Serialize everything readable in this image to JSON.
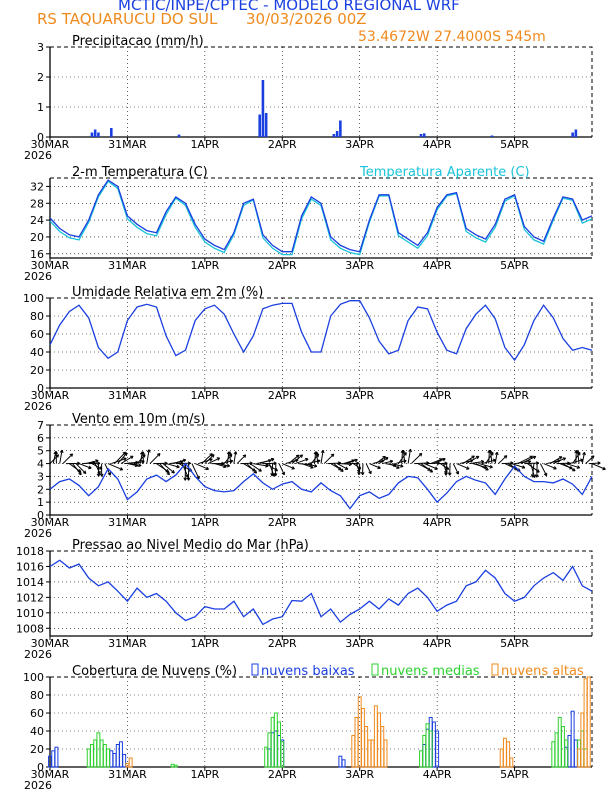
{
  "header": {
    "title": "MCTIC/INPE/CPTEC - MODELO REGIONAL WRF",
    "location": "RS TAQUARUCU DO SUL",
    "run": "30/03/2026 00Z",
    "coords": "53.4672W 27.4000S 545m"
  },
  "colors": {
    "series_blue": "#1a3fe0",
    "series_cyan": "#19c3d8",
    "orange": "#f08a1c",
    "green": "#2ed12e",
    "vector": "#000000"
  },
  "time_axis": {
    "hours": 144,
    "ticks": [
      {
        "hour": 0,
        "label": "30MAR",
        "year": "2026"
      },
      {
        "hour": 24,
        "label": "31MAR"
      },
      {
        "hour": 48,
        "label": "1APR"
      },
      {
        "hour": 72,
        "label": "2APR"
      },
      {
        "hour": 96,
        "label": "3APR"
      },
      {
        "hour": 120,
        "label": "4APR"
      },
      {
        "hour": 144,
        "label": "5APR"
      }
    ]
  },
  "chart_data": [
    {
      "type": "bar",
      "id": "precip",
      "title": "Precipitacao (mm/h)",
      "ylim": [
        0,
        3
      ],
      "yticks": [
        0,
        1,
        2,
        3
      ],
      "x_unit": "hours since 30MAR 00Z",
      "x": [
        13,
        14,
        15,
        19,
        40,
        65,
        66,
        67,
        88,
        89,
        90,
        115,
        116,
        137,
        162,
        163
      ],
      "values": [
        0.15,
        0.25,
        0.15,
        0.3,
        0.08,
        0.75,
        1.9,
        0.8,
        0.1,
        0.2,
        0.55,
        0.1,
        0.12,
        0.05,
        0.15,
        0.25
      ]
    },
    {
      "type": "line",
      "id": "temperature",
      "title": "2-m Temperatura (C)",
      "legend": "Temperatura Aparente (C)",
      "ylim": [
        15,
        34
      ],
      "yticks": [
        16,
        20,
        24,
        28,
        32
      ],
      "series": [
        {
          "name": "2-m Temperatura (C)",
          "color": "blue",
          "t": [
            0,
            3,
            6,
            9,
            12,
            15,
            18,
            21,
            24,
            27,
            30,
            33,
            36,
            39,
            42,
            45,
            48,
            51,
            54,
            57,
            60,
            63,
            66,
            69,
            72,
            75,
            78,
            81,
            84,
            87,
            90,
            93,
            96,
            99,
            102,
            105,
            108,
            111,
            114,
            117,
            120,
            123,
            126,
            129,
            132,
            135,
            138,
            141,
            144,
            147,
            150,
            153,
            156,
            159,
            162,
            165,
            168
          ],
          "values": [
            24.5,
            22,
            20.5,
            20,
            24,
            30,
            33.5,
            32,
            25,
            23,
            21.5,
            21,
            26,
            29.5,
            28,
            23,
            19.5,
            18,
            17,
            21,
            28,
            29,
            20.5,
            18,
            16.5,
            16.5,
            25,
            29.5,
            28,
            20,
            18,
            17,
            16.5,
            24,
            30,
            30,
            21,
            19.5,
            18,
            21,
            27,
            30,
            30.5,
            22,
            20.5,
            19.5,
            23,
            29,
            30,
            22.5,
            20,
            19,
            24.5,
            29.5,
            29,
            24,
            25
          ]
        },
        {
          "name": "Temperatura Aparente (C)",
          "color": "cyan",
          "t": [
            0,
            3,
            6,
            9,
            12,
            15,
            18,
            21,
            24,
            27,
            30,
            33,
            36,
            39,
            42,
            45,
            48,
            51,
            54,
            57,
            60,
            63,
            66,
            69,
            72,
            75,
            78,
            81,
            84,
            87,
            90,
            93,
            96,
            99,
            102,
            105,
            108,
            111,
            114,
            117,
            120,
            123,
            126,
            129,
            132,
            135,
            138,
            141,
            144,
            147,
            150,
            153,
            156,
            159,
            162,
            165,
            168
          ],
          "values": [
            23.8,
            21.3,
            19.8,
            19.3,
            23.5,
            29.5,
            33.2,
            31.5,
            24.3,
            22.3,
            20.8,
            20.3,
            25.3,
            29.2,
            27.5,
            22.3,
            18.8,
            17.3,
            16.3,
            20.5,
            27.5,
            28.8,
            19.8,
            17.3,
            15.8,
            15.8,
            24.3,
            29,
            27.5,
            19.3,
            17.3,
            16.3,
            15.8,
            23.5,
            29.7,
            29.8,
            20.3,
            18.8,
            17.3,
            20.3,
            26.5,
            29.7,
            30.3,
            21.3,
            19.8,
            18.8,
            22.3,
            28.5,
            29.8,
            21.8,
            19.3,
            18.3,
            24,
            29.2,
            28.7,
            23.3,
            24.3
          ]
        }
      ]
    },
    {
      "type": "line",
      "id": "humidity",
      "title": "Umidade Relativa em 2m (%)",
      "ylim": [
        0,
        100
      ],
      "yticks": [
        0,
        20,
        40,
        60,
        80,
        100
      ],
      "series": [
        {
          "name": "Umidade Relativa",
          "color": "blue",
          "t": [
            0,
            3,
            6,
            9,
            12,
            15,
            18,
            21,
            24,
            27,
            30,
            33,
            36,
            39,
            42,
            45,
            48,
            51,
            54,
            57,
            60,
            63,
            66,
            69,
            72,
            75,
            78,
            81,
            84,
            87,
            90,
            93,
            96,
            99,
            102,
            105,
            108,
            111,
            114,
            117,
            120,
            123,
            126,
            129,
            132,
            135,
            138,
            141,
            144,
            147,
            150,
            153,
            156,
            159,
            162,
            165,
            168
          ],
          "values": [
            48,
            70,
            85,
            92,
            78,
            45,
            33,
            40,
            75,
            90,
            93,
            90,
            58,
            36,
            42,
            75,
            88,
            92,
            82,
            60,
            40,
            58,
            88,
            92,
            94,
            94,
            62,
            40,
            40,
            80,
            93,
            97,
            97,
            78,
            52,
            38,
            42,
            75,
            90,
            88,
            62,
            42,
            38,
            66,
            82,
            92,
            77,
            45,
            31,
            48,
            75,
            92,
            78,
            55,
            42,
            45,
            42
          ]
        }
      ]
    },
    {
      "type": "line",
      "id": "wind",
      "title": "Vento em 10m (m/s)",
      "ylim": [
        0,
        7
      ],
      "yticks": [
        0,
        1,
        2,
        3,
        4,
        5,
        6,
        7
      ],
      "vectors": "wind direction arrows",
      "series": [
        {
          "name": "Vento em 10m",
          "color": "blue",
          "t": [
            0,
            3,
            6,
            9,
            12,
            15,
            18,
            21,
            24,
            27,
            30,
            33,
            36,
            39,
            42,
            45,
            48,
            51,
            54,
            57,
            60,
            63,
            66,
            69,
            72,
            75,
            78,
            81,
            84,
            87,
            90,
            93,
            96,
            99,
            102,
            105,
            108,
            111,
            114,
            117,
            120,
            123,
            126,
            129,
            132,
            135,
            138,
            141,
            144,
            147,
            150,
            153,
            156,
            159,
            162,
            165,
            168
          ],
          "values": [
            2,
            2.6,
            2.8,
            2.3,
            1.5,
            2.2,
            3.6,
            2.8,
            1.2,
            1.8,
            2.8,
            3.1,
            2.6,
            3.1,
            4,
            3,
            2.2,
            1.9,
            1.8,
            1.9,
            2.6,
            3.2,
            2.5,
            2,
            2.4,
            2.6,
            2,
            1.8,
            2.5,
            1.9,
            1.5,
            0.5,
            1.5,
            1.8,
            1.3,
            1.6,
            2.5,
            3,
            2.9,
            2,
            1,
            1.7,
            2.6,
            3,
            2.7,
            2.5,
            1.6,
            2.8,
            3.8,
            3,
            2.6,
            2.6,
            2.5,
            2.8,
            2.4,
            1.6,
            3
          ]
        }
      ]
    },
    {
      "type": "line",
      "id": "pressure",
      "title": "Pressao ao Nivel Medio do Mar (hPa)",
      "ylim": [
        1007,
        1018
      ],
      "yticks": [
        1008,
        1010,
        1012,
        1014,
        1016,
        1018
      ],
      "series": [
        {
          "name": "Pressao",
          "color": "blue",
          "t": [
            0,
            3,
            6,
            9,
            12,
            15,
            18,
            21,
            24,
            27,
            30,
            33,
            36,
            39,
            42,
            45,
            48,
            51,
            54,
            57,
            60,
            63,
            66,
            69,
            72,
            75,
            78,
            81,
            84,
            87,
            90,
            93,
            96,
            99,
            102,
            105,
            108,
            111,
            114,
            117,
            120,
            123,
            126,
            129,
            132,
            135,
            138,
            141,
            144,
            147,
            150,
            153,
            156,
            159,
            162,
            165,
            168
          ],
          "values": [
            1016,
            1016.8,
            1015.8,
            1016.3,
            1014.5,
            1013.5,
            1014,
            1012.8,
            1011.5,
            1013.2,
            1012,
            1012.5,
            1011.5,
            1010,
            1009,
            1009.5,
            1010.8,
            1010.5,
            1010.5,
            1011.5,
            1009.5,
            1010.5,
            1008.5,
            1009.2,
            1009.5,
            1011.6,
            1011.5,
            1012.5,
            1009.5,
            1010.5,
            1008.8,
            1009.8,
            1010.5,
            1011.5,
            1010.5,
            1011.8,
            1011,
            1012.5,
            1013.2,
            1012,
            1010.2,
            1011,
            1011.5,
            1013.5,
            1014,
            1015.5,
            1014.5,
            1012.5,
            1011.5,
            1012,
            1013.5,
            1014.5,
            1015.2,
            1014.2,
            1016,
            1013.5,
            1012.8
          ]
        }
      ]
    },
    {
      "type": "bar",
      "id": "clouds",
      "title": "Cobertura de Nuvens (%)",
      "ylim": [
        0,
        100
      ],
      "yticks": [
        0,
        20,
        40,
        60,
        80,
        100
      ],
      "legend": [
        "nuvens baixas",
        "nuvens medias",
        "nuvens altas"
      ],
      "series": [
        {
          "name": "nuvens baixas",
          "color": "blue",
          "t": [
            0,
            1,
            2,
            19,
            20,
            21,
            22,
            23,
            68,
            69,
            70,
            71,
            72,
            90,
            91,
            116,
            117,
            118,
            119,
            120,
            160,
            161,
            162,
            163
          ],
          "values": [
            12,
            18,
            22,
            18,
            15,
            25,
            28,
            14,
            20,
            38,
            40,
            35,
            30,
            12,
            8,
            25,
            42,
            55,
            50,
            40,
            22,
            35,
            62,
            30
          ]
        },
        {
          "name": "nuvens medias",
          "color": "green",
          "t": [
            12,
            13,
            14,
            15,
            16,
            17,
            18,
            38,
            39,
            67,
            68,
            69,
            70,
            71,
            72,
            115,
            116,
            117,
            118,
            156,
            157,
            158,
            159,
            160,
            164,
            165,
            166
          ],
          "values": [
            20,
            25,
            30,
            38,
            30,
            25,
            20,
            3,
            2,
            22,
            38,
            55,
            60,
            50,
            28,
            18,
            35,
            48,
            40,
            28,
            38,
            55,
            45,
            30,
            30,
            40,
            20
          ]
        },
        {
          "name": "nuvens altas",
          "color": "orange",
          "t": [
            24,
            25,
            94,
            95,
            96,
            97,
            98,
            99,
            100,
            101,
            102,
            103,
            104,
            140,
            141,
            142,
            143,
            164,
            165,
            166,
            167
          ],
          "values": [
            4,
            10,
            35,
            55,
            78,
            65,
            45,
            30,
            30,
            68,
            60,
            45,
            30,
            20,
            32,
            28,
            10,
            20,
            60,
            98,
            100
          ]
        }
      ]
    }
  ]
}
